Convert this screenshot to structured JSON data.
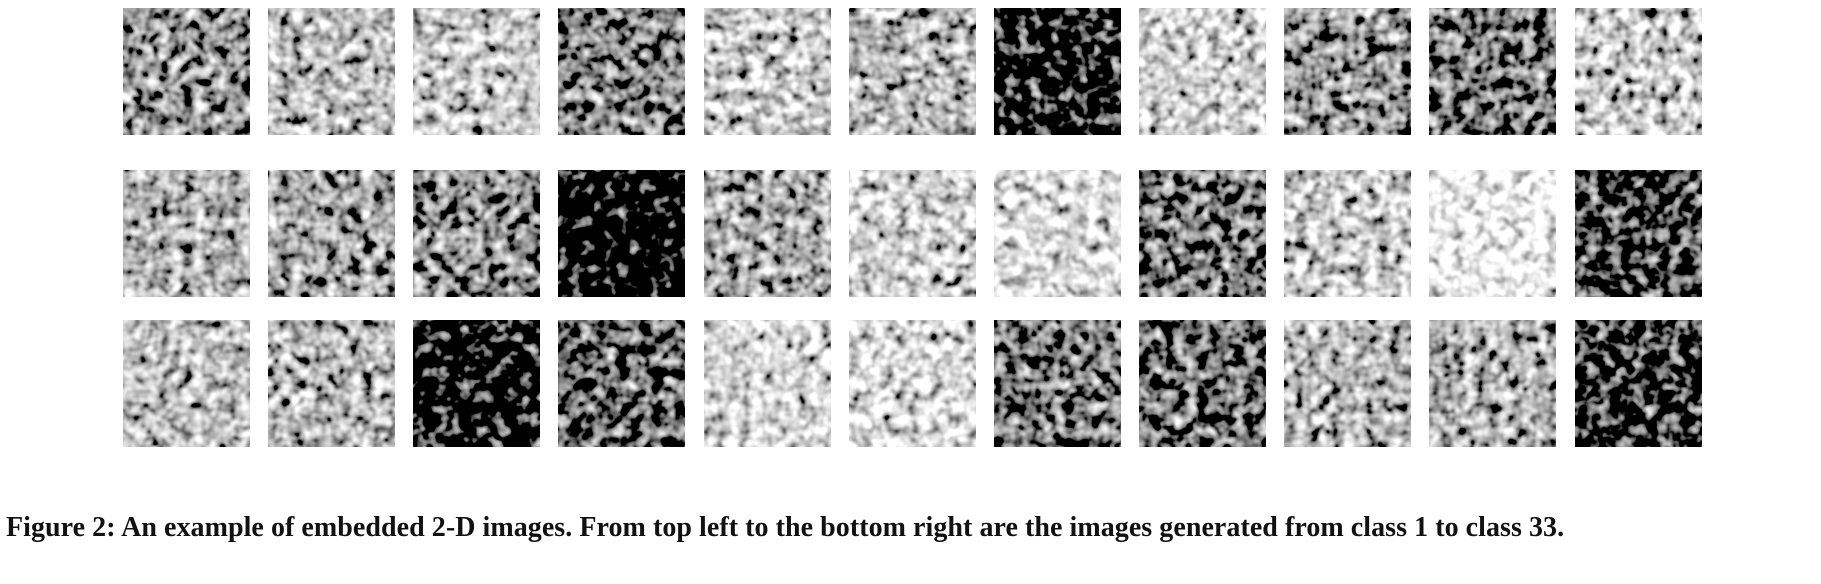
{
  "figure": {
    "caption": "Figure 2: An example of embedded 2-D images. From top left to the bottom right are the images generated from class 1 to class 33.",
    "classes": [
      {
        "class": 1,
        "brightness": 0.42
      },
      {
        "class": 2,
        "brightness": 0.52
      },
      {
        "class": 3,
        "brightness": 0.55
      },
      {
        "class": 4,
        "brightness": 0.38
      },
      {
        "class": 5,
        "brightness": 0.56
      },
      {
        "class": 6,
        "brightness": 0.5
      },
      {
        "class": 7,
        "brightness": 0.22
      },
      {
        "class": 8,
        "brightness": 0.58
      },
      {
        "class": 9,
        "brightness": 0.42
      },
      {
        "class": 10,
        "brightness": 0.36
      },
      {
        "class": 11,
        "brightness": 0.56
      },
      {
        "class": 12,
        "brightness": 0.48
      },
      {
        "class": 13,
        "brightness": 0.45
      },
      {
        "class": 14,
        "brightness": 0.4
      },
      {
        "class": 15,
        "brightness": 0.16
      },
      {
        "class": 16,
        "brightness": 0.46
      },
      {
        "class": 17,
        "brightness": 0.58
      },
      {
        "class": 18,
        "brightness": 0.62
      },
      {
        "class": 19,
        "brightness": 0.36
      },
      {
        "class": 20,
        "brightness": 0.56
      },
      {
        "class": 21,
        "brightness": 0.7
      },
      {
        "class": 22,
        "brightness": 0.28
      },
      {
        "class": 23,
        "brightness": 0.52
      },
      {
        "class": 24,
        "brightness": 0.5
      },
      {
        "class": 25,
        "brightness": 0.2
      },
      {
        "class": 26,
        "brightness": 0.32
      },
      {
        "class": 27,
        "brightness": 0.6
      },
      {
        "class": 28,
        "brightness": 0.62
      },
      {
        "class": 29,
        "brightness": 0.36
      },
      {
        "class": 30,
        "brightness": 0.34
      },
      {
        "class": 31,
        "brightness": 0.5
      },
      {
        "class": 32,
        "brightness": 0.48
      },
      {
        "class": 33,
        "brightness": 0.26
      }
    ]
  }
}
